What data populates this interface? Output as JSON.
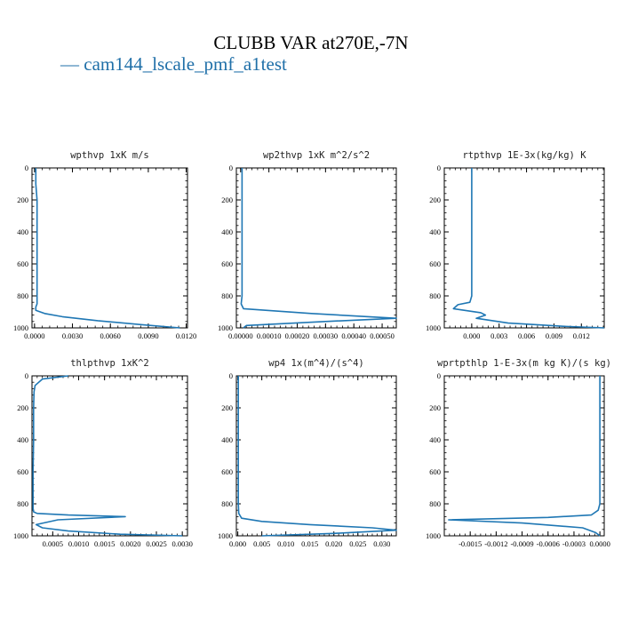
{
  "figure": {
    "title": "CLUBB VAR at270E,-7N",
    "legend": "— cam144_lscale_pmf_a1test",
    "line_color": "#1f77b4"
  },
  "chart_data": [
    {
      "type": "line",
      "title": "wpthvp  1xK m/s",
      "xlim": [
        -0.0002,
        0.0121
      ],
      "ylim": [
        1000,
        0
      ],
      "xticks": [
        0,
        0.003,
        0.006,
        0.009,
        0.012
      ],
      "xticklabels": [
        "0.0000",
        "0.0030",
        "0.0060",
        "0.0090",
        "0.0120"
      ],
      "yticks": [
        0,
        200,
        400,
        600,
        800,
        1000
      ],
      "x": [
        0.0001,
        0.0001,
        0.0002,
        0.0002,
        0.0002,
        0.0002,
        0.0002,
        0.0001,
        0.0001,
        0.0008,
        0.0022,
        0.005,
        0.0085,
        0.0115
      ],
      "y": [
        0,
        100,
        200,
        400,
        600,
        800,
        850,
        870,
        890,
        910,
        930,
        955,
        980,
        1000
      ]
    },
    {
      "type": "line",
      "title": "wp2thvp  1xK m^2/s^2",
      "xlim": [
        -1.5e-05,
        0.00055
      ],
      "ylim": [
        1000,
        0
      ],
      "xticks": [
        0,
        0.0001,
        0.0002,
        0.0003,
        0.0004,
        0.0005
      ],
      "xticklabels": [
        "0.00000",
        "0.00010",
        "0.00020",
        "0.00030",
        "0.00040",
        "0.00050"
      ],
      "yticks": [
        0,
        200,
        400,
        600,
        800,
        1000
      ],
      "x": [
        5e-06,
        5e-06,
        5e-06,
        5e-06,
        5e-06,
        2e-06,
        1e-05,
        0.00025,
        0.00055,
        0.0003,
        2e-05,
        1e-05
      ],
      "y": [
        0,
        200,
        400,
        600,
        800,
        850,
        880,
        910,
        940,
        960,
        985,
        1000
      ]
    },
    {
      "type": "line",
      "title": "rtpthvp  1E-3x(kg/kg) K",
      "xlim": [
        -0.003,
        0.0145
      ],
      "ylim": [
        1000,
        0
      ],
      "xticks": [
        0,
        0.003,
        0.006,
        0.009,
        0.012
      ],
      "xticklabels": [
        "0.000",
        "0.003",
        "0.006",
        "0.009",
        "0.012"
      ],
      "yticks": [
        0,
        200,
        400,
        600,
        800,
        1000
      ],
      "x": [
        0,
        0,
        0,
        0,
        0,
        -0.0002,
        -0.0015,
        -0.002,
        0.001,
        0.0015,
        0.0005,
        0.004,
        0.01,
        0.0145
      ],
      "y": [
        0,
        200,
        400,
        600,
        800,
        840,
        855,
        880,
        905,
        920,
        940,
        970,
        990,
        1000
      ]
    },
    {
      "type": "line",
      "title": "thlpthvp  1xK^2",
      "xlim": [
        0.0001,
        0.0031
      ],
      "ylim": [
        1000,
        0
      ],
      "xticks": [
        0.0005,
        0.001,
        0.0015,
        0.002,
        0.0025,
        0.003
      ],
      "xticklabels": [
        "0.0005",
        "0.0010",
        "0.0015",
        "0.0020",
        "0.0025",
        "0.0030"
      ],
      "yticks": [
        0,
        200,
        400,
        600,
        800,
        1000
      ],
      "x": [
        0.0008,
        0.0003,
        0.00016,
        0.00014,
        0.00013,
        0.00013,
        0.00012,
        0.00012,
        0.00012,
        0.00013,
        0.0002,
        0.0008,
        0.0019,
        0.0006,
        0.00018,
        0.0003,
        0.0008,
        0.0018,
        0.003
      ],
      "y": [
        0,
        20,
        60,
        100,
        200,
        400,
        600,
        800,
        830,
        850,
        860,
        870,
        880,
        900,
        930,
        950,
        970,
        990,
        1000
      ]
    },
    {
      "type": "line",
      "title": "wp4  1x(m^4)/(s^4)",
      "xlim": [
        -0.0003,
        0.033
      ],
      "ylim": [
        1000,
        0
      ],
      "xticks": [
        0,
        0.005,
        0.01,
        0.015,
        0.02,
        0.025,
        0.03
      ],
      "xticklabels": [
        "0.000",
        "0.005",
        "0.010",
        "0.015",
        "0.020",
        "0.025",
        "0.030"
      ],
      "yticks": [
        0,
        200,
        400,
        600,
        800,
        1000
      ],
      "x": [
        0.0001,
        0.0001,
        0.0001,
        0.0001,
        0.0001,
        0.0002,
        0.0008,
        0.005,
        0.015,
        0.028,
        0.033,
        0.02,
        0.005
      ],
      "y": [
        0,
        200,
        400,
        600,
        800,
        860,
        890,
        910,
        930,
        950,
        965,
        985,
        1000
      ]
    },
    {
      "type": "line",
      "title": "wprtpthlp  1-E-3x(m kg K)/(s kg)",
      "xlim": [
        -0.0018,
        5e-05
      ],
      "ylim": [
        1000,
        0
      ],
      "xticks": [
        -0.0015,
        -0.0012,
        -0.0009,
        -0.0006,
        -0.0003,
        0
      ],
      "xticklabels": [
        "-0.0015",
        "-0.0012",
        "-0.0009",
        "-0.0006",
        "-0.0003",
        "0.0000"
      ],
      "yticks": [
        0,
        200,
        400,
        600,
        800,
        1000
      ],
      "x": [
        0,
        0,
        0,
        0,
        0,
        -2e-05,
        -0.0001,
        -0.0006,
        -0.00175,
        -0.0009,
        -0.0002,
        -5e-05,
        0
      ],
      "y": [
        0,
        200,
        400,
        600,
        800,
        840,
        870,
        885,
        900,
        920,
        950,
        980,
        1000
      ]
    }
  ]
}
